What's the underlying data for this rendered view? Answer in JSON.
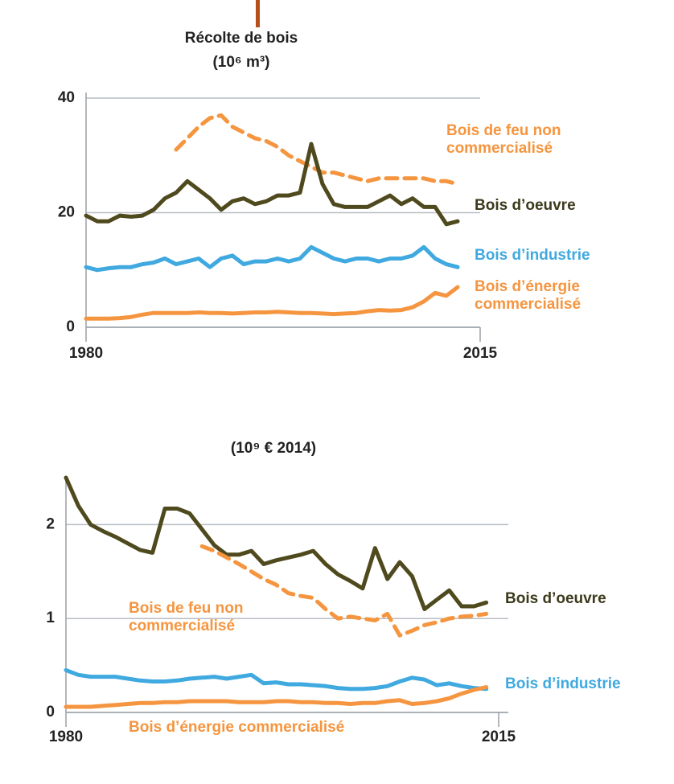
{
  "chart_data": [
    {
      "type": "line",
      "title": "Récolte de bois",
      "subtitle": "(10⁶ m³)",
      "x": [
        1980,
        1981,
        1982,
        1983,
        1984,
        1985,
        1986,
        1987,
        1988,
        1989,
        1990,
        1991,
        1992,
        1993,
        1994,
        1995,
        1996,
        1997,
        1998,
        1999,
        2000,
        2001,
        2002,
        2003,
        2004,
        2005,
        2006,
        2007,
        2008,
        2009,
        2010,
        2011,
        2012,
        2013
      ],
      "xlim": [
        1980,
        2015
      ],
      "xticks": [
        1980,
        2015
      ],
      "ylim": [
        0,
        40
      ],
      "yticks": [
        0,
        20,
        40
      ],
      "grid": true,
      "series": [
        {
          "name": "Bois de feu non commercialisé",
          "color": "#f5953f",
          "style": "dashed",
          "values": [
            null,
            null,
            null,
            null,
            null,
            null,
            null,
            null,
            31,
            33,
            35,
            36.5,
            37,
            35,
            34,
            33,
            32.5,
            31.5,
            30,
            29,
            28,
            27,
            27,
            26.5,
            26,
            25.5,
            26,
            26,
            26,
            26,
            26,
            25.5,
            25.5,
            25
          ]
        },
        {
          "name": "Bois d’oeuvre",
          "color": "#4f4a1e",
          "style": "solid",
          "values": [
            19.5,
            18.5,
            18.5,
            19.5,
            19.3,
            19.5,
            20.5,
            22.5,
            23.5,
            25.5,
            24,
            22.5,
            20.5,
            22,
            22.5,
            21.5,
            22,
            23,
            23,
            23.5,
            32,
            25,
            21.5,
            21,
            21,
            21,
            22,
            23,
            21.5,
            22.5,
            21,
            21,
            18,
            18.5
          ]
        },
        {
          "name": "Bois d’industrie",
          "color": "#3fa9e0",
          "style": "solid",
          "values": [
            10.5,
            10,
            10.3,
            10.5,
            10.5,
            11,
            11.3,
            12,
            11,
            11.5,
            12,
            10.5,
            12,
            12.5,
            11,
            11.5,
            11.5,
            12,
            11.5,
            12,
            14,
            13,
            12,
            11.5,
            12,
            12,
            11.5,
            12,
            12,
            12.5,
            14,
            12,
            11,
            10.5
          ]
        },
        {
          "name": "Bois d’énergie commercialisé",
          "color": "#f5953f",
          "style": "solid",
          "values": [
            1.5,
            1.5,
            1.5,
            1.6,
            1.8,
            2.2,
            2.5,
            2.5,
            2.5,
            2.5,
            2.6,
            2.5,
            2.5,
            2.4,
            2.5,
            2.6,
            2.6,
            2.7,
            2.6,
            2.5,
            2.5,
            2.4,
            2.3,
            2.4,
            2.5,
            2.8,
            3,
            2.9,
            3,
            3.5,
            4.5,
            6,
            5.5,
            7
          ]
        }
      ]
    },
    {
      "type": "line",
      "subtitle": "(10⁹ € 2014)",
      "x": [
        1980,
        1981,
        1982,
        1983,
        1984,
        1985,
        1986,
        1987,
        1988,
        1989,
        1990,
        1991,
        1992,
        1993,
        1994,
        1995,
        1996,
        1997,
        1998,
        1999,
        2000,
        2001,
        2002,
        2003,
        2004,
        2005,
        2006,
        2007,
        2008,
        2009,
        2010,
        2011,
        2012,
        2013,
        2014
      ],
      "xlim": [
        1980,
        2015
      ],
      "xticks": [
        1980,
        2015
      ],
      "ylim": [
        0,
        2.5
      ],
      "yticks": [
        0,
        1,
        2
      ],
      "grid": true,
      "series": [
        {
          "name": "Bois d’oeuvre",
          "color": "#4f4a1e",
          "style": "solid",
          "values": [
            2.5,
            2.2,
            2.0,
            1.93,
            1.87,
            1.8,
            1.73,
            1.7,
            2.17,
            2.17,
            2.12,
            1.95,
            1.78,
            1.68,
            1.68,
            1.72,
            1.58,
            1.62,
            1.65,
            1.68,
            1.72,
            1.58,
            1.47,
            1.4,
            1.32,
            1.75,
            1.42,
            1.6,
            1.45,
            1.1,
            1.2,
            1.3,
            1.13,
            1.13,
            1.17
          ]
        },
        {
          "name": "Bois de feu non commercialisé",
          "color": "#f5953f",
          "style": "dashed",
          "values": [
            null,
            null,
            null,
            null,
            null,
            null,
            null,
            null,
            null,
            null,
            null,
            1.77,
            1.72,
            1.65,
            1.58,
            1.5,
            1.42,
            1.36,
            1.27,
            1.24,
            1.22,
            1.1,
            1.0,
            1.02,
            1.0,
            0.98,
            1.05,
            0.82,
            0.87,
            0.93,
            0.96,
            1.0,
            1.02,
            1.03,
            1.05
          ]
        },
        {
          "name": "Bois d’industrie",
          "color": "#3fa9e0",
          "style": "solid",
          "values": [
            0.45,
            0.4,
            0.38,
            0.38,
            0.38,
            0.36,
            0.34,
            0.33,
            0.33,
            0.34,
            0.36,
            0.37,
            0.38,
            0.36,
            0.38,
            0.4,
            0.31,
            0.32,
            0.3,
            0.3,
            0.29,
            0.28,
            0.26,
            0.25,
            0.25,
            0.26,
            0.28,
            0.33,
            0.37,
            0.35,
            0.29,
            0.31,
            0.28,
            0.26,
            0.25
          ]
        },
        {
          "name": "Bois d’énergie commercialisé",
          "color": "#f5953f",
          "style": "solid",
          "values": [
            0.06,
            0.06,
            0.06,
            0.07,
            0.08,
            0.09,
            0.1,
            0.1,
            0.11,
            0.11,
            0.12,
            0.12,
            0.12,
            0.12,
            0.11,
            0.11,
            0.11,
            0.12,
            0.12,
            0.11,
            0.11,
            0.1,
            0.1,
            0.09,
            0.1,
            0.1,
            0.12,
            0.13,
            0.09,
            0.1,
            0.12,
            0.15,
            0.2,
            0.24,
            0.27
          ]
        }
      ]
    }
  ]
}
